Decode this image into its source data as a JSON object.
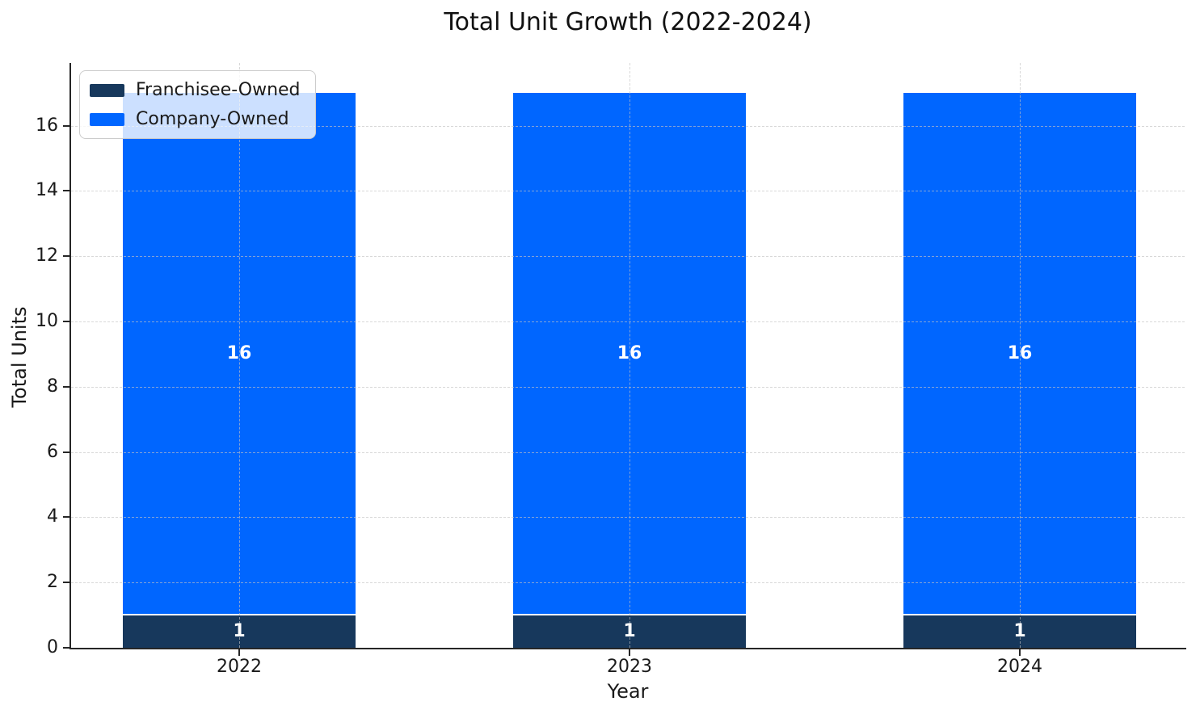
{
  "figure": {
    "background": "#ffffff"
  },
  "chart_data": {
    "type": "bar",
    "stacked": true,
    "title": "Total Unit Growth (2022-2024)",
    "xlabel": "Year",
    "ylabel": "Total Units",
    "categories": [
      "2022",
      "2023",
      "2024"
    ],
    "series": [
      {
        "name": "Franchisee-Owned",
        "color": "#17385c",
        "values": [
          1,
          1,
          1
        ]
      },
      {
        "name": "Company-Owned",
        "color": "#0066ff",
        "values": [
          16,
          16,
          16
        ]
      }
    ],
    "totals": [
      17,
      17,
      17
    ],
    "bar_value_labels_shown": true,
    "yticks": [
      0,
      2,
      4,
      6,
      8,
      10,
      12,
      14,
      16
    ],
    "ylim": [
      0,
      17.92
    ],
    "grid": true,
    "grid_style": "dashed",
    "legend": {
      "position": "upper-left",
      "entries": [
        "Franchisee-Owned",
        "Company-Owned"
      ]
    }
  }
}
